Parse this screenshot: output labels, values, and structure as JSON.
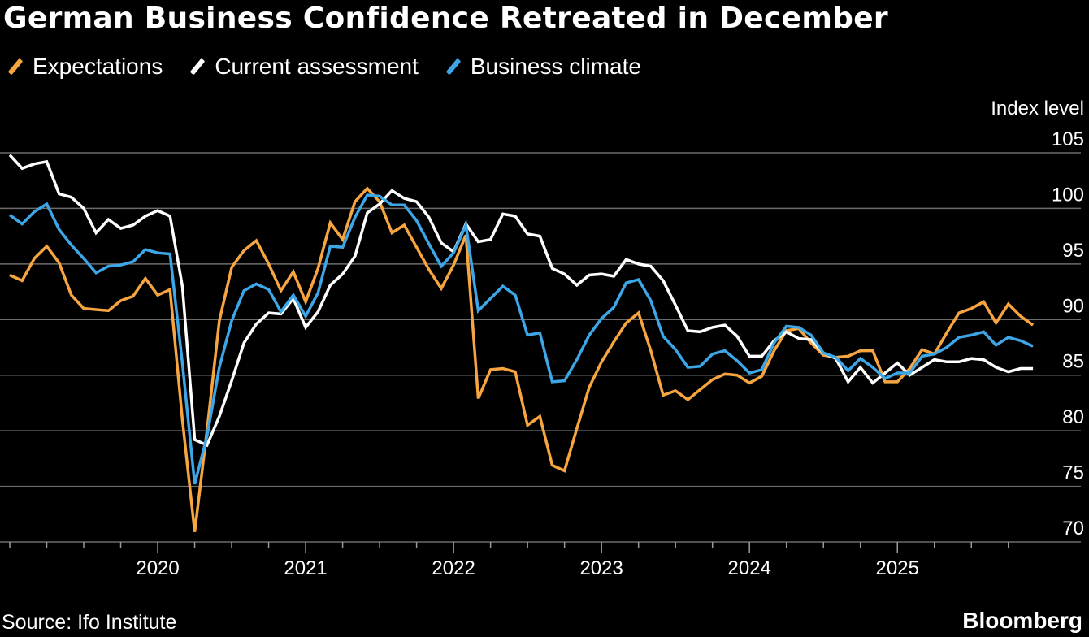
{
  "header": {
    "title": "German Business Confidence Retreated in December"
  },
  "footer": {
    "source": "Source: Ifo Institute",
    "brand": "Bloomberg"
  },
  "chart_data": {
    "type": "line",
    "title": "German Business Confidence Retreated in December",
    "ylabel": "Index level",
    "xlabel": "",
    "ylim": [
      70,
      105
    ],
    "yticks": [
      70,
      75,
      80,
      85,
      90,
      95,
      100,
      105
    ],
    "xlim": [
      "2019-01",
      "2025-12"
    ],
    "xticks": [
      "2020",
      "2021",
      "2022",
      "2023",
      "2024",
      "2025"
    ],
    "grid": "horizontal",
    "legend_position": "top-left",
    "x": [
      "2019-01",
      "2019-02",
      "2019-03",
      "2019-04",
      "2019-05",
      "2019-06",
      "2019-07",
      "2019-08",
      "2019-09",
      "2019-10",
      "2019-11",
      "2019-12",
      "2020-01",
      "2020-02",
      "2020-03",
      "2020-04",
      "2020-05",
      "2020-06",
      "2020-07",
      "2020-08",
      "2020-09",
      "2020-10",
      "2020-11",
      "2020-12",
      "2021-01",
      "2021-02",
      "2021-03",
      "2021-04",
      "2021-05",
      "2021-06",
      "2021-07",
      "2021-08",
      "2021-09",
      "2021-10",
      "2021-11",
      "2021-12",
      "2022-01",
      "2022-02",
      "2022-03",
      "2022-04",
      "2022-05",
      "2022-06",
      "2022-07",
      "2022-08",
      "2022-09",
      "2022-10",
      "2022-11",
      "2022-12",
      "2023-01",
      "2023-02",
      "2023-03",
      "2023-04",
      "2023-05",
      "2023-06",
      "2023-07",
      "2023-08",
      "2023-09",
      "2023-10",
      "2023-11",
      "2023-12",
      "2024-01",
      "2024-02",
      "2024-03",
      "2024-04",
      "2024-05",
      "2024-06",
      "2024-07",
      "2024-08",
      "2024-09",
      "2024-10",
      "2024-11",
      "2024-12",
      "2025-01",
      "2025-02",
      "2025-03",
      "2025-04",
      "2025-05",
      "2025-06",
      "2025-07",
      "2025-08",
      "2025-09",
      "2025-10",
      "2025-11",
      "2025-12"
    ],
    "series": [
      {
        "name": "Expectations",
        "color": "#f7a541",
        "values": [
          94.0,
          93.5,
          95.5,
          96.6,
          95.1,
          92.2,
          91.0,
          90.9,
          90.8,
          91.7,
          92.1,
          93.7,
          92.2,
          92.7,
          81.0,
          70.9,
          80.0,
          89.9,
          94.7,
          96.2,
          97.1,
          95.0,
          92.6,
          94.3,
          91.6,
          94.6,
          98.7,
          97.2,
          100.6,
          101.8,
          100.6,
          97.8,
          98.5,
          96.5,
          94.5,
          92.8,
          94.9,
          97.6,
          82.9,
          85.5,
          85.6,
          85.3,
          80.5,
          81.3,
          76.9,
          76.4,
          80.2,
          83.9,
          86.2,
          88.0,
          89.7,
          90.6,
          87.2,
          83.2,
          83.6,
          82.8,
          83.7,
          84.6,
          85.1,
          85.0,
          84.3,
          84.9,
          87.2,
          89.0,
          89.2,
          87.9,
          86.8,
          86.6,
          86.7,
          87.2,
          87.2,
          84.4,
          84.4,
          85.6,
          87.3,
          86.9,
          88.8,
          90.6,
          91.0,
          91.6,
          89.7,
          91.4,
          90.3,
          89.5
        ]
      },
      {
        "name": "Current assessment",
        "color": "#ffffff",
        "values": [
          104.8,
          103.6,
          104.0,
          104.2,
          101.3,
          101.0,
          100.0,
          97.8,
          99.0,
          98.2,
          98.5,
          99.3,
          99.8,
          99.3,
          93.0,
          79.2,
          78.7,
          81.3,
          84.5,
          87.9,
          89.6,
          90.6,
          90.5,
          91.9,
          89.3,
          90.7,
          93.1,
          94.1,
          95.7,
          99.6,
          100.4,
          101.6,
          100.9,
          100.6,
          99.2,
          96.9,
          96.1,
          98.6,
          97.0,
          97.2,
          99.5,
          99.3,
          97.7,
          97.5,
          94.6,
          94.1,
          93.1,
          94.0,
          94.1,
          93.9,
          95.4,
          95.0,
          94.8,
          93.5,
          91.3,
          89.0,
          88.9,
          89.3,
          89.5,
          88.5,
          86.7,
          86.7,
          88.1,
          88.9,
          88.3,
          88.2,
          87.0,
          86.5,
          84.4,
          85.7,
          84.3,
          85.2,
          86.1,
          85.0,
          85.7,
          86.4,
          86.2,
          86.2,
          86.5,
          86.4,
          85.7,
          85.3,
          85.6,
          85.6
        ]
      },
      {
        "name": "Business climate",
        "color": "#3da6e6",
        "values": [
          99.4,
          98.6,
          99.7,
          100.4,
          98.1,
          96.7,
          95.5,
          94.2,
          94.8,
          94.9,
          95.2,
          96.3,
          96.0,
          95.9,
          86.1,
          75.2,
          79.5,
          85.7,
          89.9,
          92.6,
          93.2,
          92.7,
          90.7,
          92.2,
          90.3,
          92.4,
          96.6,
          96.5,
          99.2,
          101.2,
          101.1,
          100.3,
          100.3,
          98.9,
          96.8,
          94.8,
          96.0,
          98.5,
          90.8,
          91.9,
          93.0,
          92.2,
          88.6,
          88.8,
          84.4,
          84.5,
          86.4,
          88.6,
          90.1,
          91.1,
          93.3,
          93.6,
          91.7,
          88.5,
          87.3,
          85.7,
          85.8,
          86.9,
          87.2,
          86.3,
          85.2,
          85.5,
          87.9,
          89.4,
          89.3,
          88.6,
          87.0,
          86.6,
          85.4,
          86.5,
          85.7,
          84.7,
          85.2,
          85.2,
          86.7,
          86.9,
          87.5,
          88.4,
          88.6,
          88.9,
          87.7,
          88.4,
          88.1,
          87.6
        ]
      }
    ]
  }
}
